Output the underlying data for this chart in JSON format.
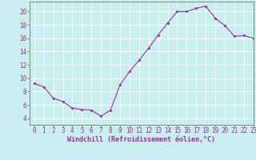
{
  "x": [
    0,
    1,
    2,
    3,
    4,
    5,
    6,
    7,
    8,
    9,
    10,
    11,
    12,
    13,
    14,
    15,
    16,
    17,
    18,
    19,
    20,
    21,
    22,
    23
  ],
  "y": [
    9.2,
    8.7,
    7.0,
    6.5,
    5.5,
    5.3,
    5.2,
    4.3,
    5.2,
    9.0,
    11.0,
    12.7,
    14.5,
    16.5,
    18.3,
    20.0,
    20.0,
    20.5,
    20.8,
    19.0,
    17.9,
    16.3,
    16.4,
    16.0
  ],
  "line_color": "#993399",
  "marker_color": "#993399",
  "bg_color": "#c8eef0",
  "grid_color": "#aadddd",
  "xlabel": "Windchill (Refroidissement éolien,°C)",
  "xlabel_color": "#993399",
  "tick_color": "#993399",
  "axis_color": "#777777",
  "ylim": [
    3,
    21.5
  ],
  "xlim": [
    -0.5,
    23
  ],
  "yticks": [
    4,
    6,
    8,
    10,
    12,
    14,
    16,
    18,
    20
  ],
  "xticks": [
    0,
    1,
    2,
    3,
    4,
    5,
    6,
    7,
    8,
    9,
    10,
    11,
    12,
    13,
    14,
    15,
    16,
    17,
    18,
    19,
    20,
    21,
    22,
    23
  ],
  "tick_fontsize": 5.5,
  "xlabel_fontsize": 6.0
}
